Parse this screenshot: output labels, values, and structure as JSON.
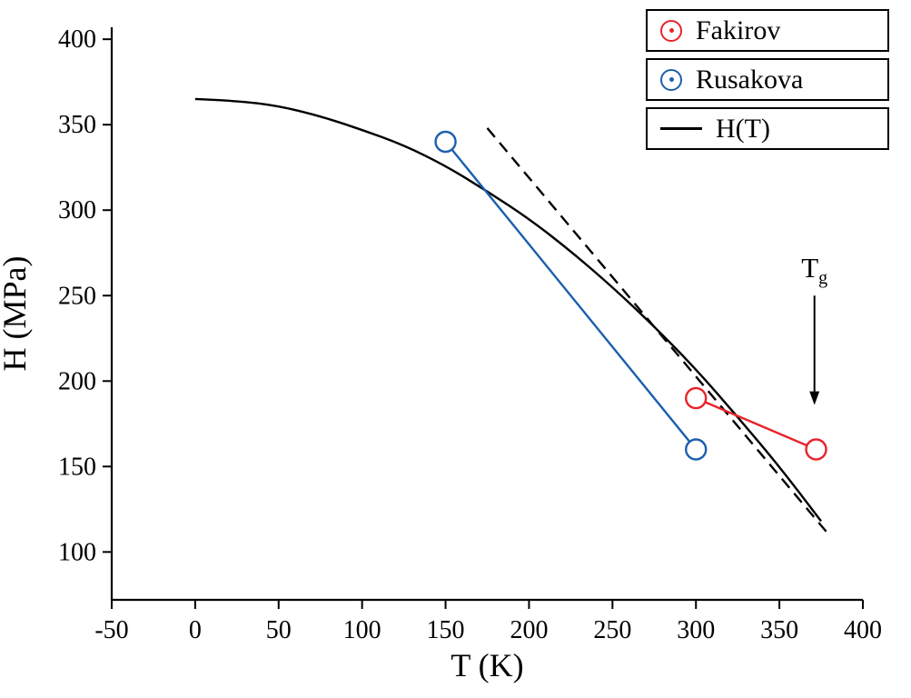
{
  "chart_data": {
    "type": "line",
    "title": "",
    "xlabel": "T (K)",
    "ylabel": "H (MPa)",
    "xlim": [
      -50,
      400
    ],
    "ylim": [
      72,
      407
    ],
    "x_ticks": [
      -50,
      0,
      50,
      100,
      150,
      200,
      250,
      300,
      350,
      400
    ],
    "y_ticks": [
      100,
      150,
      200,
      250,
      300,
      350,
      400
    ],
    "grid": false,
    "legend_position": "top-right",
    "series": [
      {
        "name": "Fakirov",
        "type": "scatter-line",
        "color": "#e8232a",
        "marker": "open-circle",
        "points": [
          [
            300,
            190
          ],
          [
            372,
            160
          ]
        ]
      },
      {
        "name": "Rusakova",
        "type": "scatter-line",
        "color": "#1c5fae",
        "marker": "open-circle",
        "points": [
          [
            150,
            340
          ],
          [
            300,
            160
          ]
        ]
      },
      {
        "name": "H(T)",
        "type": "curve",
        "color": "#000000",
        "style": "solid",
        "points": [
          [
            0,
            365
          ],
          [
            25,
            364
          ],
          [
            50,
            361
          ],
          [
            75,
            355
          ],
          [
            100,
            347
          ],
          [
            125,
            338
          ],
          [
            150,
            326
          ],
          [
            175,
            311
          ],
          [
            200,
            295
          ],
          [
            225,
            276
          ],
          [
            250,
            255
          ],
          [
            275,
            232
          ],
          [
            300,
            207
          ],
          [
            325,
            179
          ],
          [
            350,
            150
          ],
          [
            375,
            118
          ]
        ]
      },
      {
        "name": "extrapolation",
        "type": "line",
        "color": "#000000",
        "style": "dashed",
        "legend": false,
        "points": [
          [
            175,
            348
          ],
          [
            378,
            112
          ]
        ]
      }
    ],
    "annotation": {
      "label": "T",
      "sub": "g",
      "x": 371,
      "y": 263,
      "arrow_from": 250,
      "arrow_to": 186
    }
  }
}
